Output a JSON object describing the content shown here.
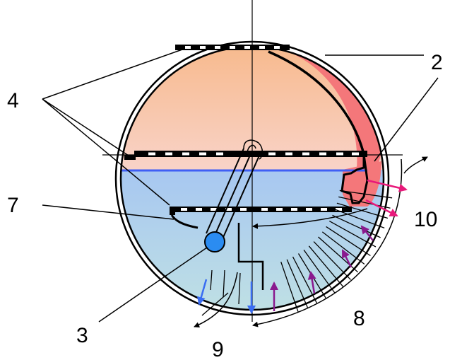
{
  "labels": {
    "l2": "2",
    "l3": "3",
    "l4": "4",
    "l7": "7",
    "l8": "8",
    "l9": "9",
    "l10": "10"
  },
  "colors": {
    "upper_fill_top": "#f7b98c",
    "upper_fill_bottom": "#f9d3c8",
    "lower_fill_top": "#a7c7f1",
    "lower_fill_bottom": "#bcdde6",
    "hot_band": "#f4777a",
    "water_line": "#3f5ff5",
    "tube_knob": "#2b8cf1",
    "arrow_blue": "#3a6df2",
    "arrow_purple": "#8a1a8e",
    "arrow_pink": "#e8197a",
    "stroke": "#000000"
  }
}
